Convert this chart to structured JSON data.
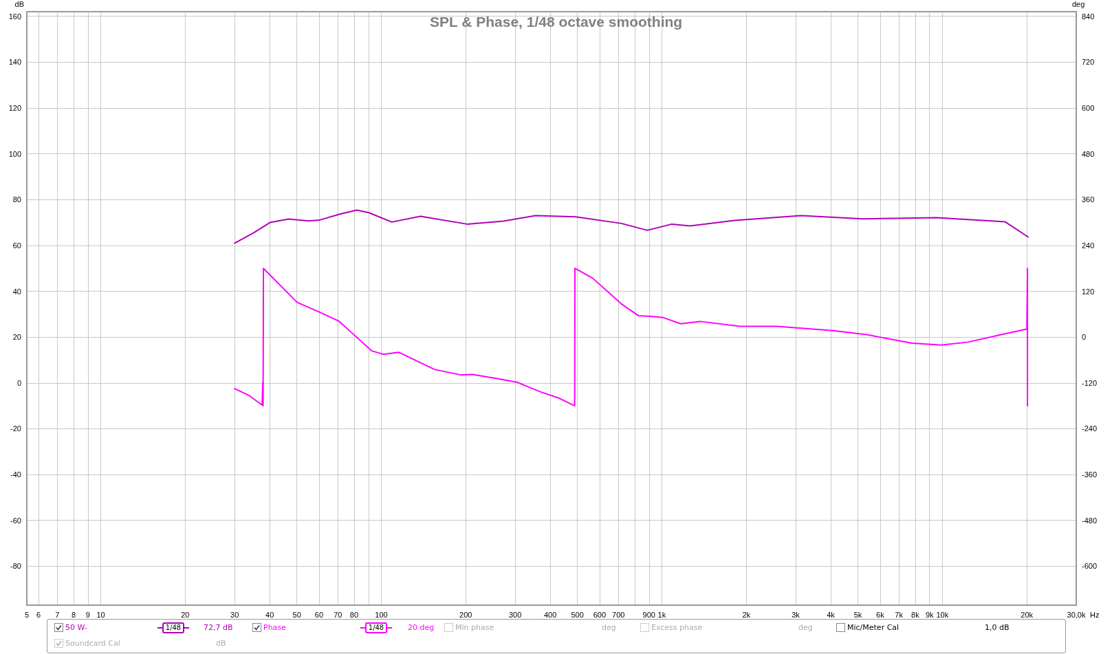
{
  "chart_data": {
    "type": "line",
    "title": "SPL & Phase, 1/48 octave smoothing",
    "xlabel": "Hz",
    "ylabel": "dB",
    "y2label": "deg",
    "log": "x",
    "grid": true,
    "legend": "bottom",
    "marker": "none",
    "line_style": "solid",
    "xlim": [
      5.45,
      30000
    ],
    "ylim": [
      -97,
      162
    ],
    "y2lim": [
      -702,
      852
    ],
    "xticks": [
      {
        "value": 5.45,
        "label": "5"
      },
      6,
      7,
      8,
      9,
      10,
      20,
      30,
      40,
      50,
      60,
      70,
      80,
      {
        "value": 90,
        "label": null
      },
      100,
      200,
      300,
      400,
      500,
      600,
      700,
      {
        "value": 800,
        "label": null
      },
      900,
      {
        "value": 1000,
        "label": "1k"
      },
      {
        "value": 2000,
        "label": "2k"
      },
      {
        "value": 3000,
        "label": "3k"
      },
      {
        "value": 4000,
        "label": "4k"
      },
      {
        "value": 5000,
        "label": "5k"
      },
      {
        "value": 6000,
        "label": "6k"
      },
      {
        "value": 7000,
        "label": "7k"
      },
      {
        "value": 8000,
        "label": "8k"
      },
      {
        "value": 9000,
        "label": "9k"
      },
      {
        "value": 10000,
        "label": "10k"
      },
      {
        "value": 20000,
        "label": "20k"
      },
      {
        "value": 30000,
        "label": "30,0k"
      }
    ],
    "yticks": [
      -80,
      -60,
      -40,
      -20,
      0,
      20,
      40,
      60,
      80,
      100,
      120,
      140,
      160
    ],
    "y2ticks": [
      -600,
      -480,
      -360,
      -240,
      -120,
      0,
      120,
      240,
      360,
      480,
      600,
      720,
      840
    ],
    "series": [
      {
        "name": "50 W-",
        "color": "#b000b8",
        "x": [
          30,
          35.2,
          40.1,
          46.7,
          55.1,
          60.4,
          71.3,
          81.8,
          90.3,
          109,
          138,
          202,
          273,
          354,
          492,
          717,
          887,
          1086,
          1259,
          1818,
          3136,
          5196,
          9520,
          16750,
          20200
        ],
        "values": [
          61.0,
          65.6,
          70.0,
          71.5,
          70.7,
          71.1,
          73.7,
          75.4,
          74.3,
          70.2,
          72.7,
          69.3,
          70.6,
          73.0,
          72.5,
          69.6,
          66.6,
          69.3,
          68.5,
          70.9,
          73.0,
          71.6,
          72.1,
          70.3,
          63.7
        ]
      },
      {
        "name": "Phase",
        "color": "#ff00ff",
        "axis": "y2",
        "x": [
          30,
          33.6,
          37.6,
          37.8,
          37.9,
          38.0,
          50.1,
          60.4,
          70.5,
          80.2,
          92.4,
          101.5,
          115.6,
          155,
          192,
          211,
          261,
          304,
          371,
          427,
          489,
          490,
          567,
          717,
          826,
          929,
          1013,
          1166,
          1371,
          1893,
          2563,
          4074,
          5407,
          7783,
          9910,
          12375,
          16750,
          20000,
          20100,
          20100
        ],
        "values": [
          -135,
          -152,
          -178,
          -118,
          -180,
          180,
          91,
          65,
          42,
          5,
          -36,
          -45,
          -40,
          -85,
          -99,
          -98,
          -109,
          -118,
          -144,
          -159,
          -180,
          180,
          154,
          87,
          56,
          54,
          51,
          35,
          41,
          28,
          28,
          17,
          6,
          -16,
          -21,
          -13,
          9,
          21,
          180,
          -180
        ]
      }
    ],
    "annotations": [
      "1/48",
      "72,7 dB",
      "1/48",
      "20 deg",
      "Min phase",
      "deg",
      "Excess phase",
      "deg",
      "Mic/Meter Cal",
      "1,0 dB",
      "Soundcard Cal",
      "dB"
    ]
  }
}
